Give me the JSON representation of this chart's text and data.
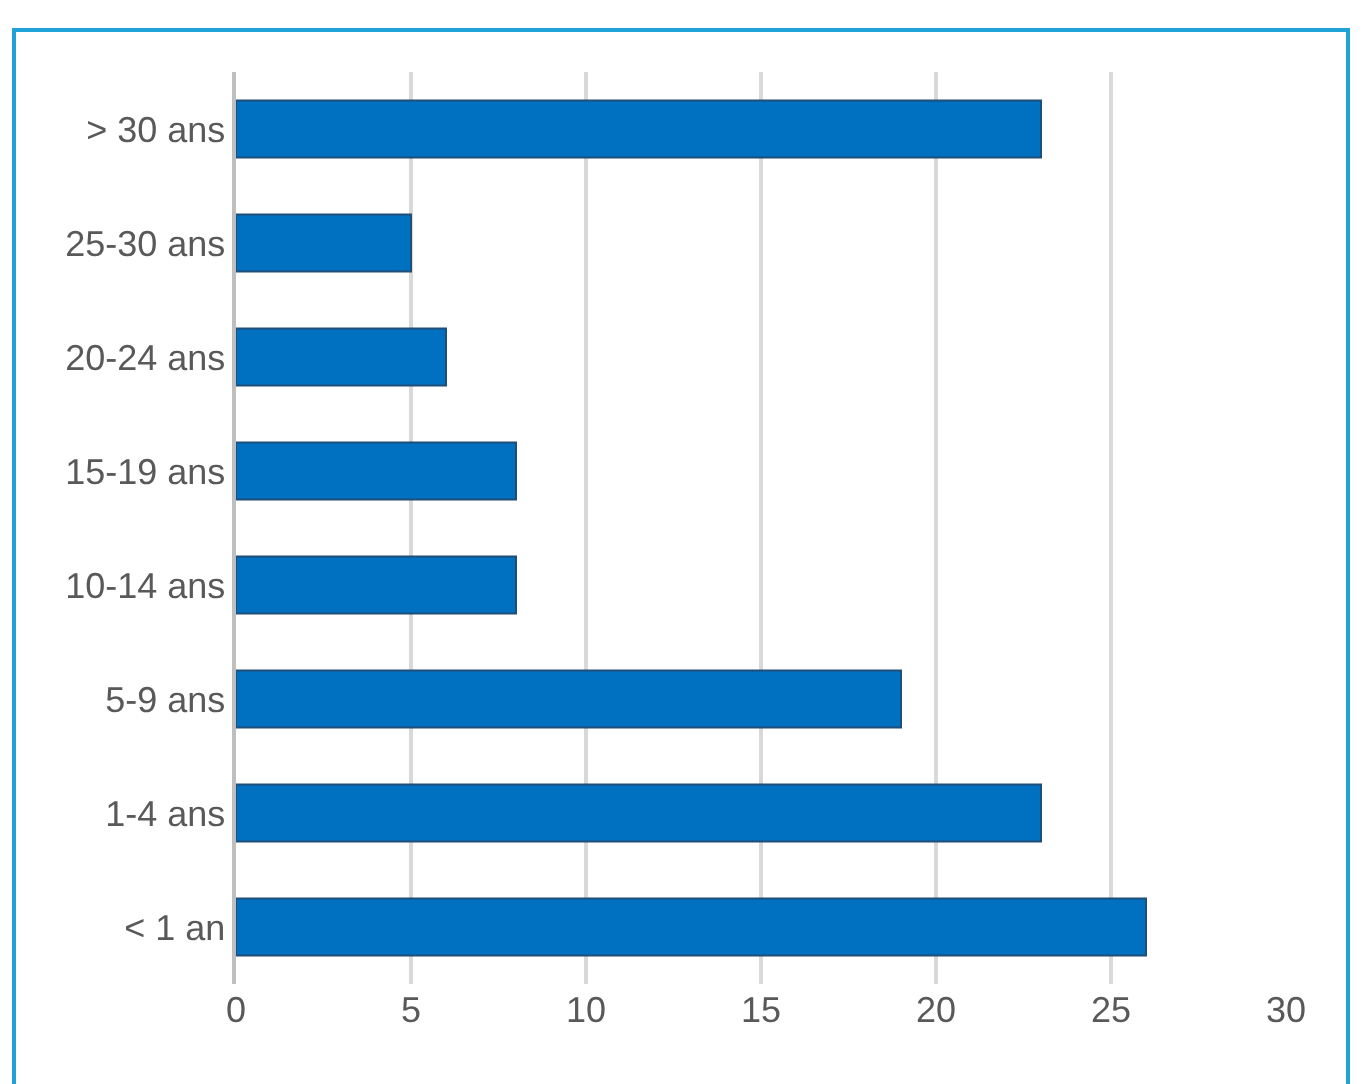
{
  "chart_data": {
    "type": "bar",
    "orientation": "horizontal",
    "categories": [
      "> 30 ans",
      "25-30 ans",
      "20-24 ans",
      "15-19 ans",
      "10-14 ans",
      "5-9 ans",
      "1-4 ans",
      "< 1 an"
    ],
    "values": [
      23,
      5,
      6,
      8,
      8,
      19,
      23,
      26
    ],
    "color": "#0070c0",
    "xlim": [
      0,
      30
    ],
    "xticks": [
      0,
      5,
      10,
      15,
      20,
      25,
      30
    ],
    "grid": "x",
    "legend": false
  }
}
